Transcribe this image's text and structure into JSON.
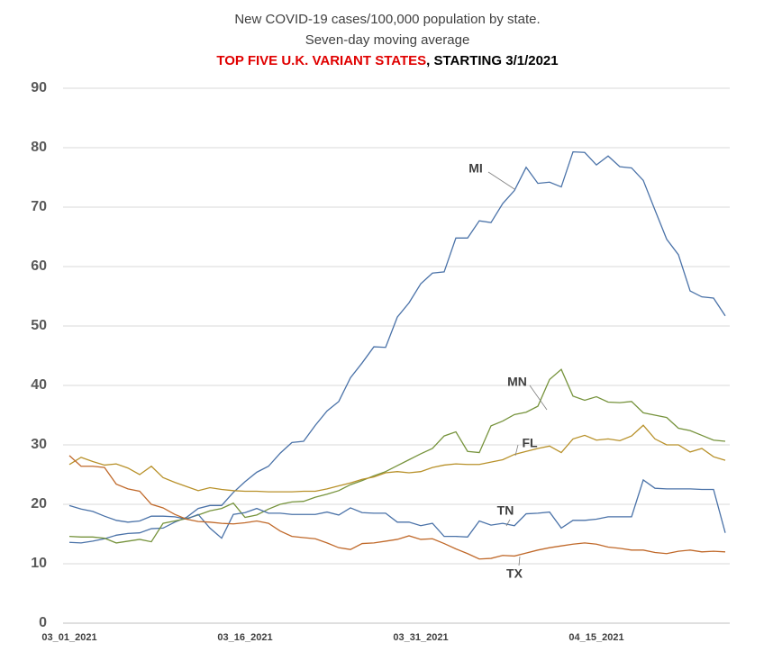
{
  "chart_data": {
    "type": "line",
    "title": [
      "New COVID-19 cases/100,000 population by state.",
      "Seven-day moving average"
    ],
    "subtitle": {
      "highlight": "TOP FIVE U.K. VARIANT STATES",
      "highlight_color": "#e00000",
      "rest": ", STARTING 3/1/2021"
    },
    "categories": [
      "03_01_2021",
      null,
      null,
      null,
      null,
      null,
      null,
      null,
      null,
      null,
      null,
      null,
      null,
      null,
      null,
      "03_16_2021",
      null,
      null,
      null,
      null,
      null,
      null,
      null,
      null,
      null,
      null,
      null,
      null,
      null,
      null,
      "03_31_2021",
      null,
      null,
      null,
      null,
      null,
      null,
      null,
      null,
      null,
      null,
      null,
      null,
      null,
      null,
      "04_15_2021",
      null,
      null,
      null,
      null,
      null,
      null,
      null,
      null,
      null,
      null,
      null
    ],
    "series": [
      {
        "name": "MI",
        "color": "#4a72a8",
        "values": [
          13.6,
          13.5,
          13.8,
          14.2,
          14.8,
          15.1,
          15.2,
          15.9,
          16.0,
          17.0,
          17.8,
          19.3,
          19.8,
          19.8,
          22.0,
          23.8,
          25.4,
          26.4,
          28.6,
          30.4,
          30.6,
          33.3,
          35.7,
          37.3,
          41.3,
          43.8,
          46.5,
          46.4,
          51.5,
          53.9,
          57.1,
          58.9,
          59.1,
          64.8,
          64.8,
          67.7,
          67.4,
          70.6,
          72.8,
          76.7,
          74.0,
          74.2,
          73.4,
          79.3,
          79.2,
          77.1,
          78.6,
          76.8,
          76.6,
          74.5,
          69.5,
          64.6,
          62.0,
          55.9,
          54.9,
          54.7,
          51.7
        ]
      },
      {
        "name": "MN",
        "color": "#76933c",
        "values": [
          14.6,
          14.5,
          14.5,
          14.3,
          13.5,
          13.8,
          14.1,
          13.7,
          16.8,
          17.2,
          17.6,
          18.2,
          18.9,
          19.3,
          20.2,
          17.8,
          18.2,
          19.2,
          20.0,
          20.4,
          20.5,
          21.2,
          21.7,
          22.3,
          23.3,
          24.0,
          24.8,
          25.5,
          26.5,
          27.5,
          28.5,
          29.4,
          31.5,
          32.2,
          28.9,
          28.7,
          33.2,
          34.0,
          35.1,
          35.5,
          36.5,
          41.0,
          42.7,
          38.2,
          37.5,
          38.1,
          37.2,
          37.1,
          37.3,
          35.4,
          35.0,
          34.6,
          32.8,
          32.4,
          31.6,
          30.8,
          30.6
        ]
      },
      {
        "name": "FL",
        "color": "#b8912a",
        "values": [
          26.7,
          27.9,
          27.2,
          26.6,
          26.8,
          26.1,
          25.0,
          26.4,
          24.5,
          23.7,
          23.0,
          22.3,
          22.8,
          22.5,
          22.3,
          22.2,
          22.2,
          22.1,
          22.1,
          22.1,
          22.2,
          22.2,
          22.6,
          23.1,
          23.6,
          24.2,
          24.6,
          25.3,
          25.5,
          25.3,
          25.5,
          26.2,
          26.6,
          26.8,
          26.7,
          26.7,
          27.1,
          27.5,
          28.4,
          28.9,
          29.4,
          29.8,
          28.7,
          31.0,
          31.6,
          30.8,
          31.0,
          30.7,
          31.5,
          33.3,
          31.0,
          30.0,
          30.0,
          28.8,
          29.4,
          28.0,
          27.4
        ]
      },
      {
        "name": "TN",
        "color": "#4a72a8",
        "values": [
          19.8,
          19.2,
          18.8,
          18.0,
          17.3,
          17.0,
          17.2,
          18.0,
          18.0,
          17.9,
          17.5,
          18.3,
          16.0,
          14.3,
          18.3,
          18.6,
          19.3,
          18.5,
          18.5,
          18.3,
          18.3,
          18.3,
          18.7,
          18.2,
          19.4,
          18.6,
          18.5,
          18.5,
          17.0,
          17.0,
          16.4,
          16.8,
          14.6,
          14.6,
          14.5,
          17.2,
          16.5,
          16.8,
          16.4,
          18.4,
          18.5,
          18.7,
          16.0,
          17.3,
          17.3,
          17.5,
          17.9,
          17.9,
          17.9,
          24.1,
          22.7,
          22.6,
          22.6,
          22.6,
          22.5,
          22.5,
          15.2
        ]
      },
      {
        "name": "TX",
        "color": "#c0692a",
        "values": [
          28.2,
          26.4,
          26.4,
          26.2,
          23.4,
          22.6,
          22.2,
          20.0,
          19.4,
          18.3,
          17.5,
          17.1,
          17.0,
          16.8,
          16.7,
          16.9,
          17.2,
          16.8,
          15.5,
          14.6,
          14.4,
          14.2,
          13.5,
          12.7,
          12.4,
          13.4,
          13.5,
          13.8,
          14.1,
          14.7,
          14.1,
          14.2,
          13.4,
          12.5,
          11.7,
          10.8,
          10.9,
          11.4,
          11.3,
          11.8,
          12.3,
          12.7,
          13.0,
          13.3,
          13.5,
          13.3,
          12.8,
          12.6,
          12.3,
          12.3,
          11.9,
          11.7,
          12.1,
          12.3,
          12.0,
          12.1,
          12.0
        ]
      }
    ],
    "ylim": [
      0,
      90
    ],
    "yticks": [
      0,
      10,
      20,
      30,
      40,
      50,
      60,
      70,
      80,
      90
    ],
    "grid": true
  }
}
